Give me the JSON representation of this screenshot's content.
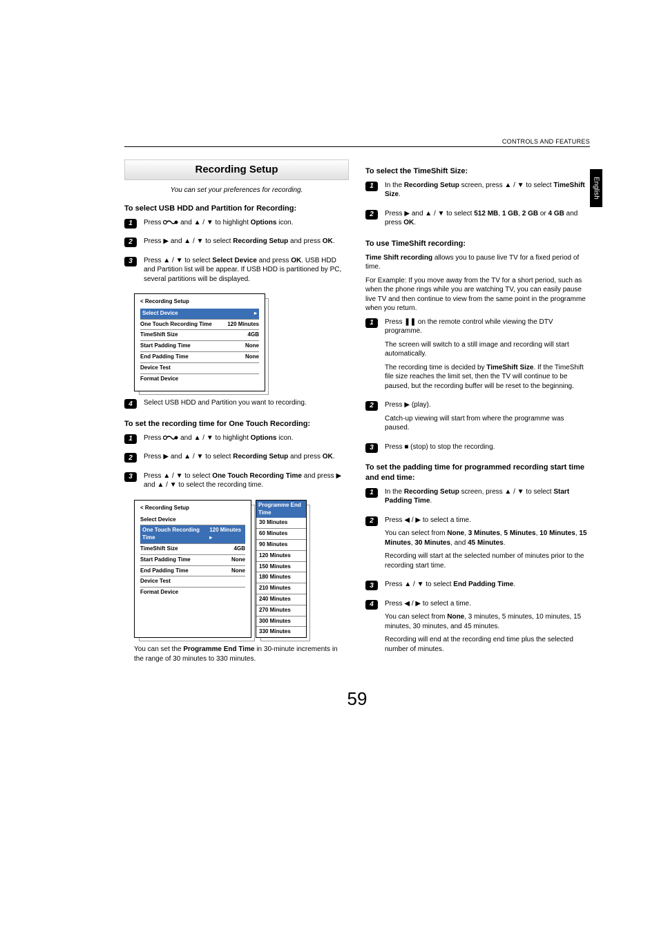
{
  "header": {
    "breadcrumb": "CONTROLS AND FEATURES"
  },
  "side_tab": "English",
  "page_number": "59",
  "left": {
    "title": "Recording Setup",
    "intro": "You can set your preferences for recording.",
    "sec1": {
      "head": "To select USB HDD and Partition for Recording:",
      "s1a": "Press ",
      "s1b": " and ",
      "s1c": " to highlight ",
      "s1d": "Options",
      "s1e": " icon.",
      "s2a": "Press ",
      "s2b": " and ",
      "s2c": " to select ",
      "s2d": "Recording Setup",
      "s2e": " and press ",
      "s2f": "OK",
      "s3a": "Press ",
      "s3b": " to select ",
      "s3c": "Select Device",
      "s3d": " and press ",
      "s3e": "OK",
      "s3f": ". USB HDD and Partition list will be appear. If USB HDD is partitioned by PC, several partitions will be displayed.",
      "s4": "Select USB HDD and Partition you want to recording."
    },
    "table1": {
      "title": "< Recording Setup",
      "rows": [
        {
          "k": "Select Device",
          "v": "",
          "hl": true,
          "arrow": true
        },
        {
          "k": "One Touch Recording Time",
          "v": "120 Minutes"
        },
        {
          "k": "TimeShift Size",
          "v": "4GB"
        },
        {
          "k": "Start Padding Time",
          "v": "None"
        },
        {
          "k": "End Padding Time",
          "v": "None"
        },
        {
          "k": "Device Test",
          "v": ""
        },
        {
          "k": "Format Device",
          "v": ""
        }
      ]
    },
    "sec2": {
      "head": "To set the recording time for One Touch Recording:",
      "s1a": "Press ",
      "s1b": " and ",
      "s1c": " to highlight ",
      "s1d": "Options",
      "s1e": " icon.",
      "s2a": "Press ",
      "s2b": " and ",
      "s2c": " to select ",
      "s2d": "Recording Setup",
      "s2e": " and press ",
      "s2f": "OK",
      "s3a": "Press ",
      "s3b": " to select ",
      "s3c": "One Touch Recording Time",
      "s3d": " and press ",
      "s3e": " and ",
      "s3f": " to select the recording time."
    },
    "table2": {
      "title": "< Recording Setup",
      "rows": [
        {
          "k": "Select Device",
          "v": ""
        },
        {
          "k": "One Touch Recording Time",
          "v": "120 Minutes",
          "hl": true,
          "arrow": true
        },
        {
          "k": "TimeShift Size",
          "v": "4GB"
        },
        {
          "k": "Start Padding Time",
          "v": "None"
        },
        {
          "k": "End Padding Time",
          "v": "None"
        },
        {
          "k": "Device Test",
          "v": ""
        },
        {
          "k": "Format Device",
          "v": ""
        }
      ]
    },
    "popup": {
      "head": "Programme End Time",
      "items": [
        "30 Minutes",
        "60 Minutes",
        "90 Minutes",
        "120 Minutes",
        "150 Minutes",
        "180 Minutes",
        "210 Minutes",
        "240 Minutes",
        "270 Minutes",
        "300 Minutes",
        "330 Minutes"
      ]
    },
    "foot1a": "You can set the ",
    "foot1b": "Programme End Time",
    "foot1c": " in 30-minute increments in the range of 30 minutes to 330 minutes."
  },
  "right": {
    "sec1": {
      "head": "To select the TimeShift Size:",
      "s1a": "In the ",
      "s1b": "Recording Setup",
      "s1c": " screen, press ",
      "s1d": " to select ",
      "s1e": "TimeShift Size",
      "s2a": "Press ",
      "s2b": " and ",
      "s2c": " to select ",
      "s2d": "512 MB",
      "s2e": "1 GB",
      "s2f": "2 GB",
      "s2g": " or ",
      "s2h": "4 GB",
      "s2i": " and press ",
      "s2j": "OK"
    },
    "sec2": {
      "head": "To use TimeShift recording:",
      "p1a": "Time Shift recording",
      "p1b": " allows you to pause live TV for a fixed period of time.",
      "p2": "For Example: If you move away from the TV for a short period, such as when the phone rings while you are watching TV, you can easily pause live TV and then continue to view from the same point in the programme when you return.",
      "s1a": "Press ",
      "s1b": " on the remote control while viewing the DTV programme.",
      "s1c": "The screen will switch to a still image and recording will start automatically.",
      "s1d": "The recording time is decided by ",
      "s1e": "TimeShift Size",
      "s1f": ". If the TimeShift file size reaches the limit set, then the TV will continue to be paused, but the recording buffer will be reset to the beginning.",
      "s2a": "Press ",
      "s2b": " (play).",
      "s2c": "Catch-up viewing will start from where the programme was paused.",
      "s3a": "Press ",
      "s3b": " (stop) to stop the recording."
    },
    "sec3": {
      "head": "To set the padding time for programmed recording start time and end time:",
      "s1a": "In the ",
      "s1b": "Recording Setup",
      "s1c": " screen, press ",
      "s1d": " to select ",
      "s1e": "Start Padding Time",
      "s2a": "Press ",
      "s2b": " to select a time.",
      "s2c": "You can select from ",
      "opts": [
        "None",
        "3 Minutes",
        "5 Minutes",
        "10 Minutes",
        "15 Minutes",
        "30 Minutes",
        "45 Minutes"
      ],
      "s2d": "Recording will start at the selected number of minutes prior to the recording start time.",
      "s3a": "Press ",
      "s3b": " to select ",
      "s3c": "End Padding Time",
      "s4a": "Press ",
      "s4b": " to select a time.",
      "s4c": "You can select from ",
      "s4d": ", 3 minutes, 5 minutes, 10 minutes, 15 minutes, 30 minutes, and 45 minutes.",
      "s4e": "Recording will end at the recording end time plus the selected number of minutes."
    }
  }
}
